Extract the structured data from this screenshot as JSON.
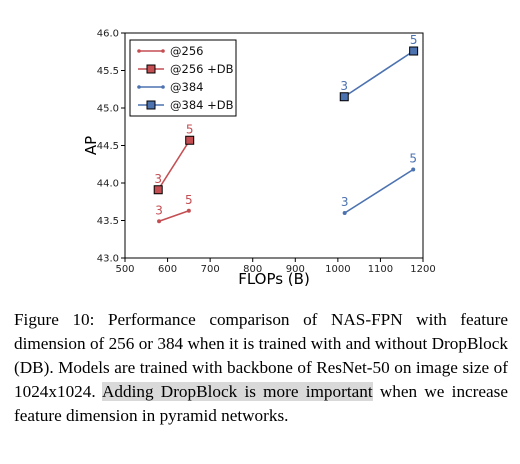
{
  "chart_data": {
    "type": "line",
    "xlabel": "FLOPs (B)",
    "ylabel": "AP",
    "xlim": [
      500,
      1200
    ],
    "ylim": [
      43.0,
      46.0
    ],
    "xticks": [
      "500",
      "600",
      "700",
      "800",
      "900",
      "1000",
      "1100",
      "1200"
    ],
    "yticks": [
      "43.0",
      "43.5",
      "44.0",
      "44.5",
      "45.0",
      "45.5",
      "46.0"
    ],
    "grid": false,
    "legend_position": "top-left",
    "series": [
      {
        "name": "@256",
        "color": "#c44e52",
        "marker": "dot",
        "points": [
          {
            "x": 580,
            "y": 43.49,
            "label": "3"
          },
          {
            "x": 650,
            "y": 43.63,
            "label": "5"
          }
        ]
      },
      {
        "name": "@256 +DB",
        "color": "#c44e52",
        "marker": "square",
        "points": [
          {
            "x": 578,
            "y": 43.91,
            "label": "3"
          },
          {
            "x": 652,
            "y": 44.57,
            "label": "5"
          }
        ]
      },
      {
        "name": "@384",
        "color": "#4c72b0",
        "marker": "dot",
        "points": [
          {
            "x": 1016,
            "y": 43.6,
            "label": "3"
          },
          {
            "x": 1177,
            "y": 44.18,
            "label": "5"
          }
        ]
      },
      {
        "name": "@384 +DB",
        "color": "#4c72b0",
        "marker": "square",
        "points": [
          {
            "x": 1015,
            "y": 45.15,
            "label": "3"
          },
          {
            "x": 1178,
            "y": 45.76,
            "label": "5"
          }
        ]
      }
    ]
  },
  "caption": {
    "prefix": "Figure 10: Performance comparison of NAS-FPN with feature dimension of 256 or 384 when it is trained with and without DropBlock (DB). Models are trained with backbone of ResNet-50 on image size of 1024x1024. ",
    "highlight": "Adding DropBlock is more important",
    "suffix": " when we increase feature dimension in pyramid networks."
  }
}
